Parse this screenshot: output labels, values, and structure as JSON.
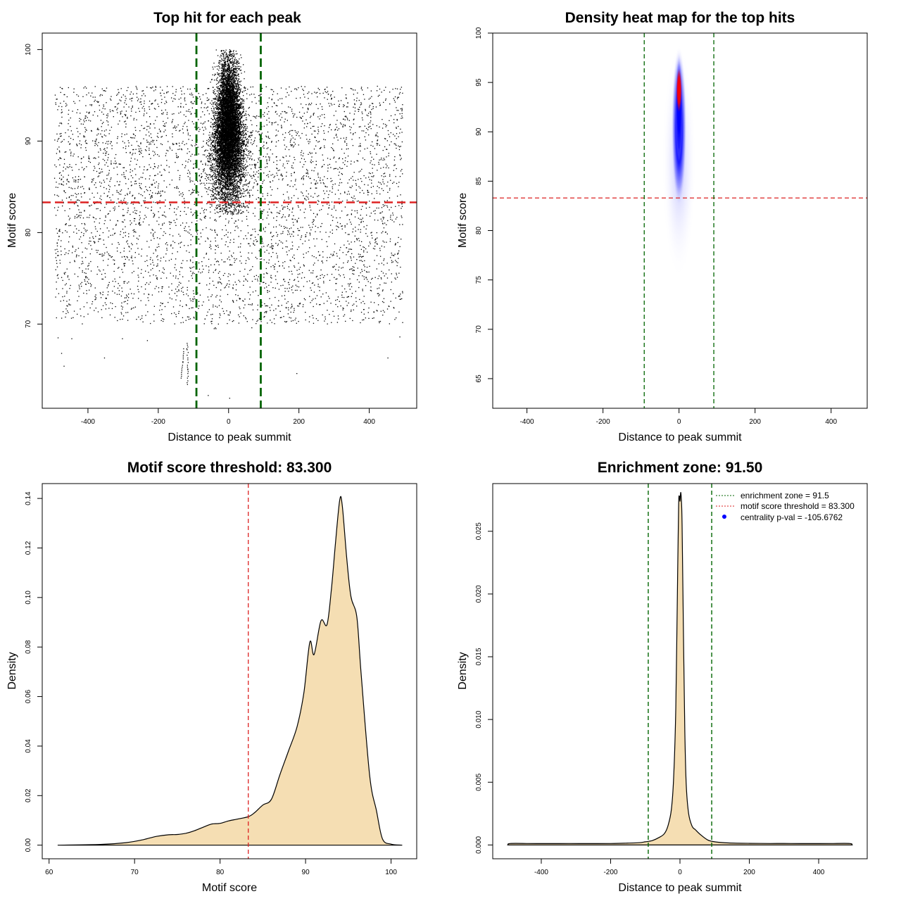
{
  "colors": {
    "threshold": "#dd2222",
    "zone": "#006400",
    "fill": "#f5deb3",
    "heat_low": "#0000ff",
    "heat_high": "#ff0000",
    "point": "#000000",
    "legend_dot": "#0000ff"
  },
  "chart_data": [
    {
      "id": "scatter",
      "type": "scatter",
      "title": "Top hit for each peak",
      "xlabel": "Distance to peak summit",
      "ylabel": "Motif score",
      "xlim": [
        -530,
        535
      ],
      "ylim": [
        60.8,
        101.8
      ],
      "xticks": [
        -400,
        -200,
        0,
        200,
        400
      ],
      "yticks": [
        70,
        80,
        90,
        100
      ],
      "threshold": 83.3,
      "zone": [
        -91.5,
        91.5
      ],
      "background": {
        "n": 4500,
        "x_range": [
          -495,
          495
        ],
        "y_range": [
          70,
          96
        ]
      },
      "cluster": {
        "n": 9000,
        "x_center": 0,
        "x_sd": 16,
        "y_center": 91,
        "y_sd": 3.6,
        "y_range": [
          82,
          100
        ]
      },
      "outliers": [
        {
          "x": -485,
          "y": 68.5
        },
        {
          "x": -475,
          "y": 66.8
        },
        {
          "x": -468,
          "y": 65.4
        },
        {
          "x": -446,
          "y": 68.4
        },
        {
          "x": -353,
          "y": 66.3
        },
        {
          "x": -302,
          "y": 68.4
        },
        {
          "x": -231,
          "y": 68.2
        },
        {
          "x": -118,
          "y": 67.9
        },
        {
          "x": -117,
          "y": 67.7
        },
        {
          "x": -116,
          "y": 67.5
        },
        {
          "x": -118,
          "y": 67.2
        },
        {
          "x": -115,
          "y": 66.9
        },
        {
          "x": -118,
          "y": 66.6
        },
        {
          "x": -116,
          "y": 66.3
        },
        {
          "x": -116,
          "y": 66.1
        },
        {
          "x": -115,
          "y": 65.8
        },
        {
          "x": -117,
          "y": 65.5
        },
        {
          "x": -117,
          "y": 65.3
        },
        {
          "x": -116,
          "y": 65.1
        },
        {
          "x": -116,
          "y": 65.0
        },
        {
          "x": -115,
          "y": 64.8
        },
        {
          "x": -116,
          "y": 64.6
        },
        {
          "x": -115,
          "y": 64.3
        },
        {
          "x": -117,
          "y": 64.1
        },
        {
          "x": -116,
          "y": 63.8
        },
        {
          "x": -58,
          "y": 62.2
        },
        {
          "x": 3,
          "y": 61.9
        },
        {
          "x": -41,
          "y": 69.5
        },
        {
          "x": -38,
          "y": 69.6
        },
        {
          "x": -36,
          "y": 69.5
        },
        {
          "x": 66,
          "y": 69.6
        },
        {
          "x": 194,
          "y": 64.6
        },
        {
          "x": 453,
          "y": 66.3
        },
        {
          "x": 487,
          "y": 68.6
        },
        {
          "x": -128,
          "y": 67.3
        },
        {
          "x": -128,
          "y": 67.0
        },
        {
          "x": -128,
          "y": 66.8
        },
        {
          "x": -129,
          "y": 66.6
        },
        {
          "x": -129,
          "y": 66.4
        },
        {
          "x": -129,
          "y": 66.2
        },
        {
          "x": -130,
          "y": 65.9
        },
        {
          "x": -130,
          "y": 65.8
        },
        {
          "x": -131,
          "y": 65.5
        },
        {
          "x": -132,
          "y": 65.3
        },
        {
          "x": -133,
          "y": 65.1
        },
        {
          "x": -133,
          "y": 64.9
        },
        {
          "x": -134,
          "y": 64.7
        },
        {
          "x": -134,
          "y": 64.5
        },
        {
          "x": -134,
          "y": 64.3
        },
        {
          "x": -135,
          "y": 64.1
        },
        {
          "x": -119,
          "y": 67.3
        },
        {
          "x": -118,
          "y": 63.6
        },
        {
          "x": -117,
          "y": 63.4
        }
      ]
    },
    {
      "id": "heatmap",
      "type": "heatmap",
      "title": "Density heat map for the top hits",
      "xlabel": "Distance to peak summit",
      "ylabel": "Motif score",
      "xlim": [
        -490,
        495
      ],
      "ylim": [
        62,
        100
      ],
      "xticks": [
        -400,
        -200,
        0,
        200,
        400
      ],
      "yticks": [
        65,
        70,
        75,
        80,
        85,
        90,
        95,
        100
      ],
      "threshold": 83.3,
      "zone": [
        -91.5,
        91.5
      ],
      "hotspot": {
        "x": 0,
        "y": 94.2
      }
    },
    {
      "id": "score-density",
      "type": "area",
      "title": "Motif score threshold: 83.300",
      "xlabel": "Motif score",
      "ylabel": "Density",
      "xlim": [
        59.2,
        103.0
      ],
      "ylim": [
        -0.0055,
        0.146
      ],
      "xticks": [
        60,
        70,
        80,
        90,
        100
      ],
      "yticks": [
        0.0,
        0.02,
        0.04,
        0.06,
        0.08,
        0.1,
        0.12,
        0.14
      ],
      "ytick_labels": [
        "0.00",
        "0.02",
        "0.04",
        "0.06",
        "0.08",
        "0.10",
        "0.12",
        "0.14"
      ],
      "threshold": 83.3,
      "x": [
        61,
        66,
        69,
        71,
        72.5,
        74,
        75,
        76,
        77,
        78,
        79,
        80,
        81,
        82,
        83.3,
        84,
        85,
        86,
        87,
        88,
        89,
        89.8,
        90.5,
        91,
        91.8,
        92.5,
        93,
        93.5,
        94,
        94.3,
        94.8,
        95.3,
        96,
        96.5,
        97.5,
        98.3,
        99,
        100,
        101.3
      ],
      "y": [
        0.0,
        0.0003,
        0.001,
        0.0022,
        0.0035,
        0.0042,
        0.0043,
        0.0048,
        0.0058,
        0.0072,
        0.0085,
        0.0088,
        0.0098,
        0.0105,
        0.0115,
        0.013,
        0.0162,
        0.0185,
        0.0285,
        0.038,
        0.0478,
        0.0615,
        0.082,
        0.077,
        0.0906,
        0.089,
        0.1025,
        0.122,
        0.1395,
        0.137,
        0.1165,
        0.1005,
        0.092,
        0.069,
        0.028,
        0.0138,
        0.0025,
        0.0004,
        0.0
      ]
    },
    {
      "id": "distance-density",
      "type": "area",
      "title": "Enrichment zone: 91.50",
      "xlabel": "Distance to peak summit",
      "ylabel": "Density",
      "xlim": [
        -540,
        540
      ],
      "ylim": [
        -0.0011,
        0.0288
      ],
      "xticks": [
        -400,
        -200,
        0,
        200,
        400
      ],
      "yticks": [
        0.0,
        0.005,
        0.01,
        0.015,
        0.02,
        0.025
      ],
      "ytick_labels": [
        "0.000",
        "0.005",
        "0.010",
        "0.015",
        "0.020",
        "0.025"
      ],
      "zone": [
        -91.5,
        91.5
      ],
      "x": [
        -496,
        -490,
        -440,
        -380,
        -320,
        -260,
        -200,
        -160,
        -120,
        -100,
        -80,
        -60,
        -45,
        -35,
        -25,
        -18,
        -12,
        -8,
        -4,
        -2,
        0,
        2,
        4,
        6,
        10,
        14,
        18,
        25,
        35,
        45,
        60,
        80,
        100,
        140,
        200,
        260,
        320,
        380,
        440,
        490,
        496
      ],
      "y": [
        0.0,
        0.00012,
        0.00012,
        0.00011,
        0.00012,
        0.00011,
        0.00012,
        0.00014,
        0.00018,
        0.00025,
        0.00035,
        0.0006,
        0.0009,
        0.0015,
        0.0028,
        0.0055,
        0.011,
        0.019,
        0.0268,
        0.0278,
        0.0274,
        0.0281,
        0.0275,
        0.0255,
        0.017,
        0.009,
        0.0048,
        0.0025,
        0.0015,
        0.0012,
        0.0008,
        0.0004,
        0.00025,
        0.00016,
        0.00013,
        0.00012,
        0.00012,
        0.00011,
        0.00012,
        0.00012,
        0.0
      ],
      "legend": [
        {
          "label": "enrichment zone = 91.5",
          "kind": "zone"
        },
        {
          "label": "motif score threshold = 83.300",
          "kind": "threshold"
        },
        {
          "label": "centrality p-val = -105.6762",
          "kind": "dot"
        }
      ]
    }
  ]
}
